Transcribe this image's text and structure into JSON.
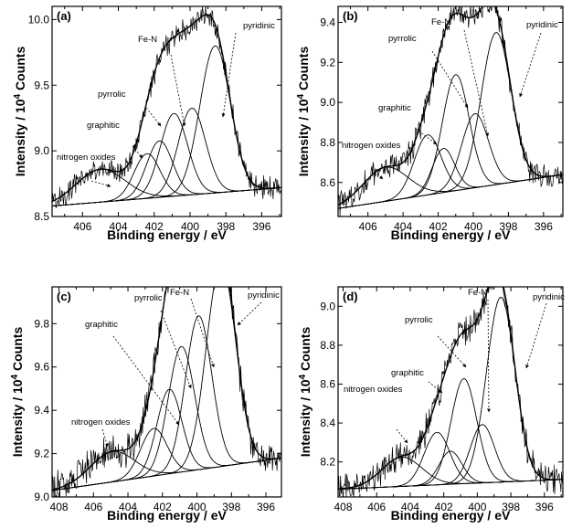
{
  "chart_data": [
    {
      "type": "line",
      "panel_label": "(a)",
      "xlabel": "Binding energy / eV",
      "ylabel_main": "Intensity / 10",
      "ylabel_sup": "4",
      "ylabel_tail": " Counts",
      "xlim": [
        407.7,
        394.9
      ],
      "ylim": [
        8.5,
        10.1
      ],
      "xticks": [
        406,
        404,
        402,
        400,
        398,
        396
      ],
      "yticks": [
        8.5,
        9.0,
        9.5,
        10.0
      ],
      "ytick_labels": [
        "8.5",
        "9.0",
        "9.5",
        "10.0"
      ],
      "baseline": {
        "x": [
          407.7,
          394.9
        ],
        "y": [
          8.58,
          8.72
        ]
      },
      "peaks": [
        {
          "name": "nitrogen oxides",
          "center": 405.0,
          "height": 0.25,
          "fwhm": 3.2
        },
        {
          "name": "graphitic",
          "center": 402.4,
          "height": 0.34,
          "fwhm": 1.7
        },
        {
          "name": "graphitic",
          "center": 401.7,
          "height": 0.43,
          "fwhm": 1.7
        },
        {
          "name": "pyrrolic",
          "center": 400.9,
          "height": 0.63,
          "fwhm": 1.8
        },
        {
          "name": "Fe-N",
          "center": 399.9,
          "height": 0.66,
          "fwhm": 1.8
        },
        {
          "name": "pyridinic",
          "center": 398.6,
          "height": 1.12,
          "fwhm": 2.0
        }
      ],
      "noise": 0.07,
      "annotations": [
        "nitrogen oxides",
        "graphitic",
        "pyrrolic",
        "Fe-N",
        "pyridinic"
      ]
    },
    {
      "type": "line",
      "panel_label": "(b)",
      "xlabel": "Binding energy / eV",
      "ylabel_main": "Intensity / 10",
      "ylabel_sup": "4",
      "ylabel_tail": " Counts",
      "xlim": [
        407.7,
        394.9
      ],
      "ylim": [
        8.43,
        9.48
      ],
      "xticks": [
        406,
        404,
        402,
        400,
        398,
        396
      ],
      "yticks": [
        8.6,
        8.8,
        9.0,
        9.2,
        9.4
      ],
      "ytick_labels": [
        "8.6",
        "8.8",
        "9.0",
        "9.2",
        "9.4"
      ],
      "baseline": {
        "x": [
          407.7,
          394.9
        ],
        "y": [
          8.47,
          8.64
        ]
      },
      "peaks": [
        {
          "name": "nitrogen oxides",
          "center": 405.0,
          "height": 0.17,
          "fwhm": 3.0
        },
        {
          "name": "graphitic",
          "center": 402.6,
          "height": 0.3,
          "fwhm": 1.8
        },
        {
          "name": "graphitic",
          "center": 401.7,
          "height": 0.22,
          "fwhm": 1.5
        },
        {
          "name": "pyrrolic",
          "center": 401.0,
          "height": 0.58,
          "fwhm": 1.8
        },
        {
          "name": "Fe-N",
          "center": 399.9,
          "height": 0.37,
          "fwhm": 1.8
        },
        {
          "name": "pyridinic",
          "center": 398.7,
          "height": 0.76,
          "fwhm": 2.0
        }
      ],
      "noise": 0.05,
      "annotations": [
        "nitrogen oxides",
        "graphitic",
        "pyrrolic",
        "Fe-N",
        "pyridinic"
      ]
    },
    {
      "type": "line",
      "panel_label": "(c)",
      "xlabel": "Binding energy / eV",
      "ylabel_main": "Intensity / 10",
      "ylabel_sup": "4",
      "ylabel_tail": " Counts",
      "xlim": [
        408.4,
        395.1
      ],
      "ylim": [
        9.0,
        9.97
      ],
      "xticks": [
        408,
        406,
        404,
        402,
        400,
        398,
        396
      ],
      "yticks": [
        9.0,
        9.2,
        9.4,
        9.6,
        9.8
      ],
      "ytick_labels": [
        "9.0",
        "9.2",
        "9.4",
        "9.6",
        "9.8"
      ],
      "baseline": {
        "x": [
          408.4,
          395.1
        ],
        "y": [
          9.03,
          9.18
        ]
      },
      "peaks": [
        {
          "name": "nitrogen oxides",
          "center": 404.9,
          "height": 0.14,
          "fwhm": 3.0
        },
        {
          "name": "graphitic",
          "center": 402.5,
          "height": 0.22,
          "fwhm": 1.8
        },
        {
          "name": "graphitic",
          "center": 401.6,
          "height": 0.39,
          "fwhm": 1.7
        },
        {
          "name": "pyrrolic",
          "center": 400.9,
          "height": 0.58,
          "fwhm": 1.8
        },
        {
          "name": "Fe-N",
          "center": 399.9,
          "height": 0.71,
          "fwhm": 1.8
        },
        {
          "name": "pyridinic",
          "center": 398.6,
          "height": 0.94,
          "fwhm": 2.0
        }
      ],
      "noise": 0.06,
      "annotations": [
        "nitrogen oxides",
        "graphitic",
        "pyrrolic",
        "Fe-N",
        "pyridinic"
      ]
    },
    {
      "type": "line",
      "panel_label": "(d)",
      "xlabel": "Binding energy / eV",
      "ylabel_main": "Intensity / 10",
      "ylabel_sup": "4",
      "ylabel_tail": " Counts",
      "xlim": [
        408.3,
        394.9
      ],
      "ylim": [
        8.02,
        9.1
      ],
      "xticks": [
        408,
        406,
        404,
        402,
        400,
        398,
        396
      ],
      "yticks": [
        8.2,
        8.4,
        8.6,
        8.8,
        9.0
      ],
      "ytick_labels": [
        "8.2",
        "8.4",
        "8.6",
        "8.8",
        "9.0"
      ],
      "baseline": {
        "x": [
          408.3,
          394.9
        ],
        "y": [
          8.06,
          8.11
        ]
      },
      "peaks": [
        {
          "name": "nitrogen oxides",
          "center": 404.5,
          "height": 0.15,
          "fwhm": 2.8
        },
        {
          "name": "graphitic",
          "center": 402.4,
          "height": 0.27,
          "fwhm": 1.8
        },
        {
          "name": "graphitic",
          "center": 401.6,
          "height": 0.17,
          "fwhm": 1.6
        },
        {
          "name": "pyrrolic",
          "center": 400.8,
          "height": 0.54,
          "fwhm": 1.8
        },
        {
          "name": "Fe-N",
          "center": 399.7,
          "height": 0.3,
          "fwhm": 1.7
        },
        {
          "name": "pyridinic",
          "center": 398.6,
          "height": 0.95,
          "fwhm": 2.0
        }
      ],
      "noise": 0.06,
      "annotations": [
        "nitrogen oxides",
        "graphitic",
        "pyrrolic",
        "Fe-N",
        "pyridinic"
      ]
    }
  ]
}
